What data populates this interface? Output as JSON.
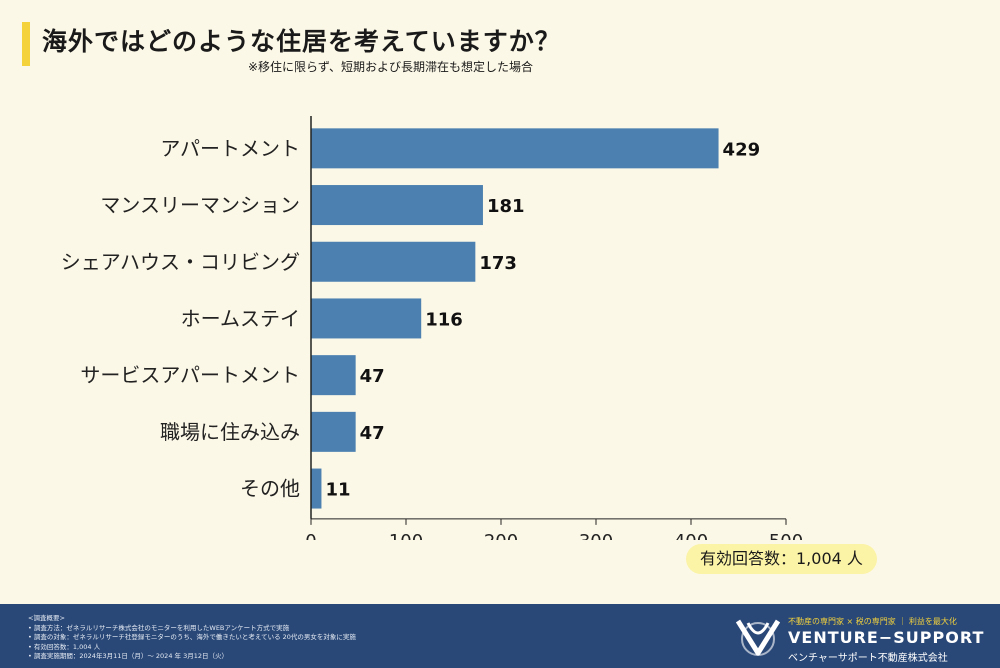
{
  "title": "海外ではどのような住居を考えていますか？",
  "subtitle": "※移住に限らず、短期および長期滞在も想定した場合",
  "chart_data": {
    "type": "bar",
    "orientation": "horizontal",
    "categories": [
      "アパートメント",
      "マンスリーマンション",
      "シェアハウス・コリビング",
      "ホームステイ",
      "サービスアパートメント",
      "職場に住み込み",
      "その他"
    ],
    "values": [
      429,
      181,
      173,
      116,
      47,
      47,
      11
    ],
    "xlim": [
      0,
      500
    ],
    "xticks": [
      0,
      100,
      200,
      300,
      400,
      500
    ],
    "bar_color": "#4b80b0",
    "grid": false
  },
  "respondents": "有効回答数：1,004 人",
  "footer": {
    "notes": [
      "<調査概要>",
      "• 調査方法：ゼネラルリサーチ株式会社のモニターを利用したWEBアンケート方式で実施",
      "• 調査の対象：ゼネラルリサーチ社登録モニターのうち、海外で働きたいと考えている 20代の男女を対象に実施",
      "• 有効回答数：1,004 人",
      "• 調査実施期間：2024年3月11日（月）〜 2024 年 3月12日（火）"
    ],
    "tagline": "不動産の専門家 × 税の専門家 ｜ 利益を最大化",
    "brand": "VENTURE−SUPPORT",
    "company": "ベンチャーサポート不動産株式会社"
  },
  "colors": {
    "background": "#fcf8e7",
    "accent": "#f3d23c",
    "footer": "#2a4877",
    "bar": "#4b80b0"
  }
}
